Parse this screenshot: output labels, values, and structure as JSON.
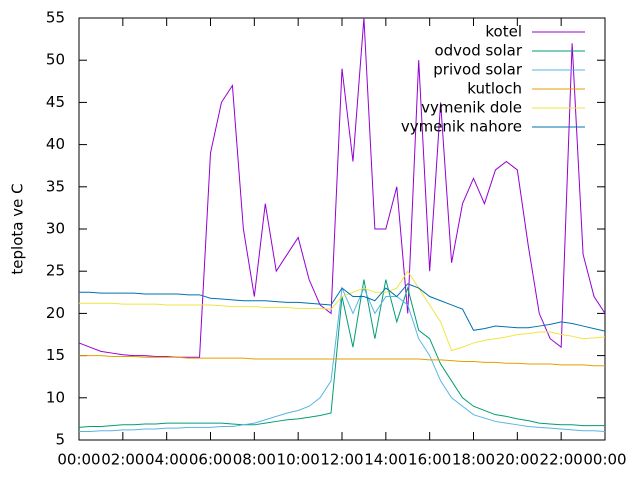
{
  "chart_data": {
    "type": "line",
    "ylabel": "teplota ve C",
    "x": [
      0,
      0.5,
      1,
      1.5,
      2,
      2.5,
      3,
      3.5,
      4,
      4.5,
      5,
      5.5,
      6,
      6.5,
      7,
      7.5,
      8,
      8.5,
      9,
      9.5,
      10,
      10.5,
      11,
      11.5,
      12,
      12.5,
      13,
      13.5,
      14,
      14.5,
      15,
      15.5,
      16,
      16.5,
      17,
      17.5,
      18,
      18.5,
      19,
      19.5,
      20,
      20.5,
      21,
      21.5,
      22,
      22.5,
      23,
      23.5,
      24
    ],
    "xlim": [
      0,
      24
    ],
    "xticks": [
      {
        "value": 0,
        "label": "00:00"
      },
      {
        "value": 2,
        "label": "02:00"
      },
      {
        "value": 4,
        "label": "04:00"
      },
      {
        "value": 6,
        "label": "06:00"
      },
      {
        "value": 8,
        "label": "08:00"
      },
      {
        "value": 10,
        "label": "10:00"
      },
      {
        "value": 12,
        "label": "12:00"
      },
      {
        "value": 14,
        "label": "14:00"
      },
      {
        "value": 16,
        "label": "16:00"
      },
      {
        "value": 18,
        "label": "18:00"
      },
      {
        "value": 20,
        "label": "20:00"
      },
      {
        "value": 22,
        "label": "22:00"
      },
      {
        "value": 24,
        "label": "00:00"
      }
    ],
    "ylim": [
      5,
      55
    ],
    "yticks": [
      5,
      10,
      15,
      20,
      25,
      30,
      35,
      40,
      45,
      50,
      55
    ],
    "legend": "top-right",
    "series": [
      {
        "name": "kotel",
        "color": "#9400d3",
        "values": [
          16.5,
          16,
          15.5,
          15.3,
          15.1,
          15,
          15,
          14.9,
          14.9,
          14.8,
          14.8,
          14.8,
          39,
          45,
          47,
          30,
          22,
          33,
          25,
          27,
          29,
          24,
          21,
          20,
          49,
          38,
          55,
          30,
          30,
          35,
          20,
          50,
          25,
          45,
          26,
          33,
          36,
          33,
          37,
          38,
          37,
          28,
          20,
          17,
          16,
          52,
          27,
          22,
          20
        ]
      },
      {
        "name": "odvod solar",
        "color": "#009e73",
        "values": [
          6.5,
          6.6,
          6.6,
          6.7,
          6.8,
          6.8,
          6.9,
          6.9,
          7,
          7,
          7,
          7,
          7,
          7,
          6.9,
          6.8,
          6.8,
          7,
          7.2,
          7.4,
          7.5,
          7.7,
          7.9,
          8.2,
          22,
          16,
          24,
          17,
          24,
          19,
          23,
          18,
          17,
          14,
          12,
          10,
          9,
          8.5,
          8,
          7.8,
          7.5,
          7.3,
          7,
          6.9,
          6.8,
          6.8,
          6.7,
          6.7,
          6.7
        ]
      },
      {
        "name": "privod solar",
        "color": "#56b4e9",
        "values": [
          6,
          6,
          6.1,
          6.1,
          6.2,
          6.2,
          6.3,
          6.3,
          6.4,
          6.4,
          6.5,
          6.5,
          6.5,
          6.6,
          6.6,
          6.8,
          7,
          7.4,
          7.8,
          8.2,
          8.5,
          9,
          10,
          12,
          23,
          20,
          23,
          20,
          22,
          22,
          21,
          17,
          15,
          12,
          10,
          9,
          8,
          7.6,
          7.2,
          7,
          6.8,
          6.6,
          6.5,
          6.4,
          6.3,
          6.2,
          6.1,
          6.1,
          6
        ]
      },
      {
        "name": "kutloch",
        "color": "#e69f00",
        "values": [
          15,
          15,
          15,
          14.9,
          14.9,
          14.9,
          14.8,
          14.8,
          14.8,
          14.8,
          14.7,
          14.7,
          14.7,
          14.7,
          14.7,
          14.7,
          14.6,
          14.6,
          14.6,
          14.6,
          14.6,
          14.6,
          14.6,
          14.6,
          14.6,
          14.6,
          14.6,
          14.6,
          14.6,
          14.6,
          14.6,
          14.6,
          14.5,
          14.5,
          14.4,
          14.3,
          14.3,
          14.2,
          14.2,
          14.1,
          14.1,
          14,
          14,
          14,
          13.9,
          13.9,
          13.9,
          13.8,
          13.8
        ]
      },
      {
        "name": "vymenik dole",
        "color": "#f0e442",
        "values": [
          21.2,
          21.2,
          21.2,
          21.2,
          21.1,
          21.1,
          21.1,
          21.1,
          21,
          21,
          21,
          21,
          21,
          20.9,
          20.8,
          20.8,
          20.8,
          20.7,
          20.7,
          20.7,
          20.6,
          20.6,
          20.6,
          20.5,
          22,
          22.5,
          23,
          22.5,
          22.5,
          23,
          25,
          23,
          21,
          19,
          15.6,
          16,
          16.5,
          16.8,
          17,
          17.2,
          17.5,
          17.6,
          17.8,
          17.8,
          17.5,
          17.3,
          17,
          17.1,
          17.2
        ]
      },
      {
        "name": "vymenik nahore",
        "color": "#0072b2",
        "values": [
          22.5,
          22.5,
          22.4,
          22.4,
          22.4,
          22.4,
          22.3,
          22.3,
          22.3,
          22.3,
          22.2,
          22.2,
          21.8,
          21.7,
          21.6,
          21.5,
          21.5,
          21.5,
          21.4,
          21.3,
          21.3,
          21.2,
          21.1,
          21,
          23,
          22,
          22,
          21.5,
          23,
          22,
          23.5,
          23,
          22,
          21.5,
          21,
          20.5,
          18,
          18.2,
          18.5,
          18.4,
          18.3,
          18.3,
          18.5,
          18.7,
          19,
          18.8,
          18.5,
          18.2,
          17.9
        ]
      }
    ]
  }
}
